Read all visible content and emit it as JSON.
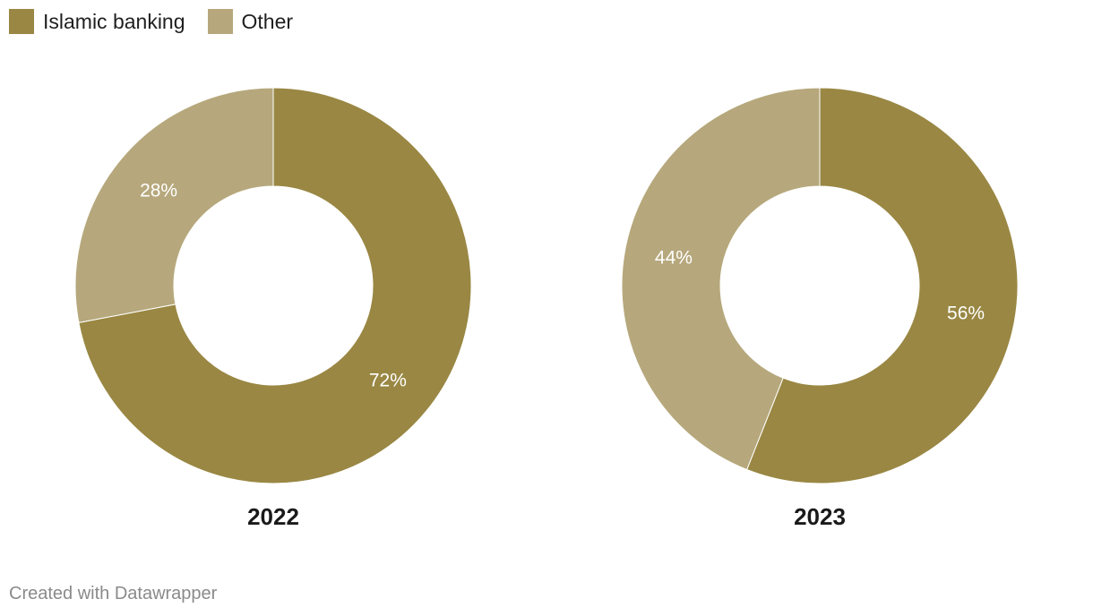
{
  "legend": {
    "items": [
      {
        "label": "Islamic banking",
        "color": "#998743"
      },
      {
        "label": "Other",
        "color": "#b6a87c"
      }
    ]
  },
  "chart_data": [
    {
      "type": "pie",
      "variant": "donut",
      "title": "2022",
      "slices": [
        {
          "label": "Islamic banking",
          "value": 72,
          "display": "72%",
          "color": "#998743"
        },
        {
          "label": "Other",
          "value": 28,
          "display": "28%",
          "color": "#b6a87c"
        }
      ]
    },
    {
      "type": "pie",
      "variant": "donut",
      "title": "2023",
      "slices": [
        {
          "label": "Islamic banking",
          "value": 56,
          "display": "56%",
          "color": "#998743"
        },
        {
          "label": "Other",
          "value": 44,
          "display": "44%",
          "color": "#b6a87c"
        }
      ]
    }
  ],
  "footer": {
    "credit": "Created with Datawrapper"
  }
}
